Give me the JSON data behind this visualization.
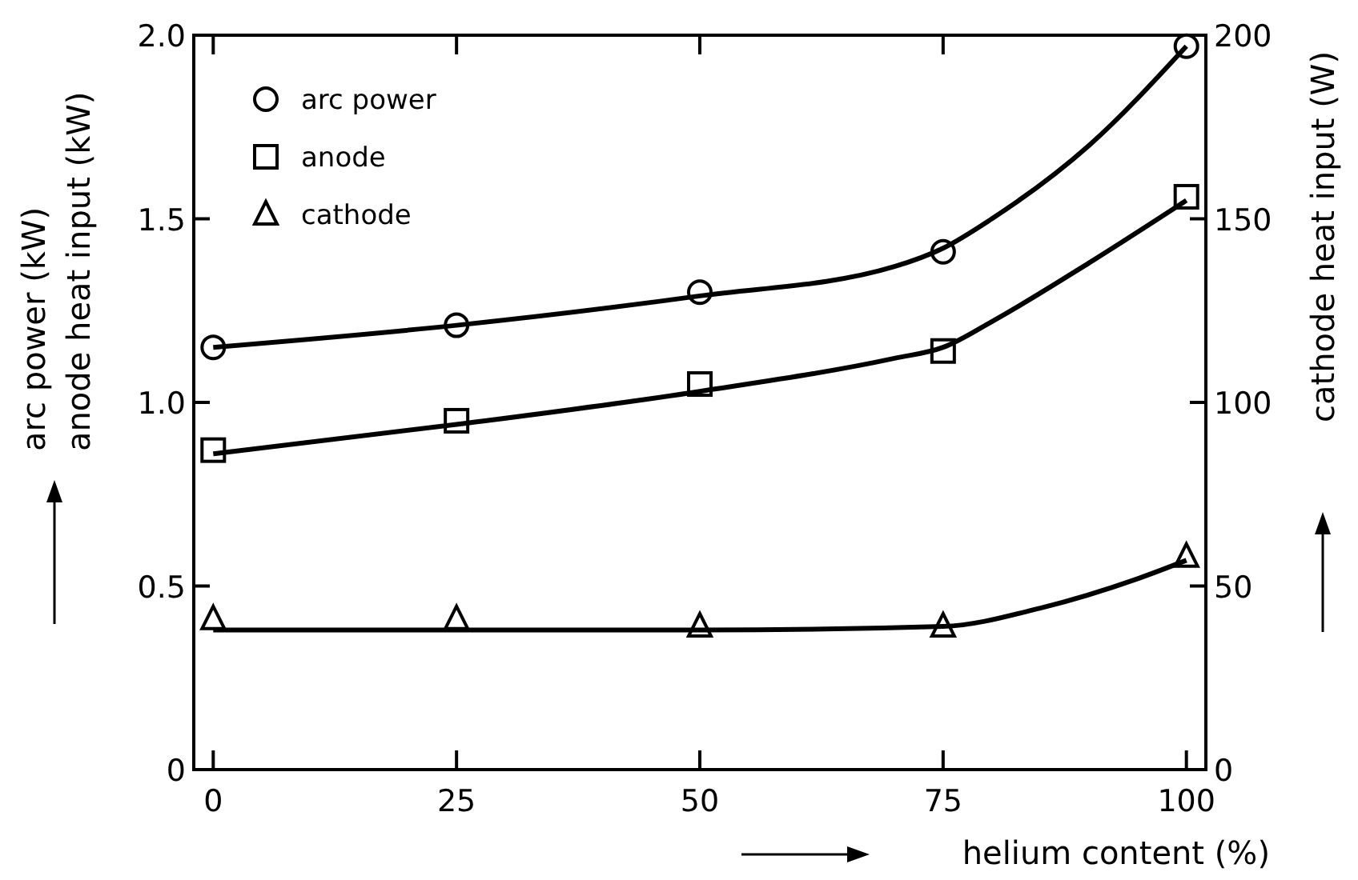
{
  "chart_data": {
    "type": "line",
    "xlabel": "helium content (%)",
    "ylabel": "arc power (kW)\nanode heat input (kW)",
    "y2label": "cathode heat input (W)",
    "xlim": [
      -2,
      102
    ],
    "xticks": [
      0,
      25,
      50,
      75,
      100
    ],
    "ylim": [
      0,
      2
    ],
    "yticks": [
      0,
      0.5,
      {
        "value": 1,
        "label": "1.0"
      },
      1.5,
      {
        "value": 2,
        "label": "2.0"
      }
    ],
    "y2lim": [
      0,
      200
    ],
    "y2ticks": [
      0,
      50,
      100,
      150,
      200
    ],
    "legend": "top left",
    "grid": false,
    "series": [
      {
        "type": "scatter",
        "name": "arc power",
        "color": "#000000",
        "marker": "circle",
        "x": [
          0,
          25,
          50,
          75,
          100
        ],
        "values": [
          1.15,
          1.21,
          1.3,
          1.41,
          1.97
        ]
      },
      {
        "type": "scatter",
        "name": "anode",
        "color": "#000000",
        "marker": "square",
        "x": [
          0,
          25,
          50,
          75,
          100
        ],
        "values": [
          0.87,
          0.95,
          1.05,
          1.14,
          1.56
        ]
      },
      {
        "type": "scatter",
        "name": "cathode",
        "color": "#000000",
        "marker": "triangle",
        "axis": "y2",
        "x": [
          0,
          25,
          50,
          75,
          100
        ],
        "values": [
          41,
          41,
          39,
          39,
          58
        ]
      },
      {
        "color": "#000000",
        "marker": "none",
        "x": [
          0,
          25,
          50,
          70,
          75,
          80,
          90,
          100
        ],
        "values": [
          1.15,
          1.21,
          1.29,
          1.37,
          1.42,
          1.5,
          1.7,
          1.97
        ]
      },
      {
        "color": "#000000",
        "marker": "none",
        "x": [
          0,
          25,
          50,
          70,
          75,
          80,
          90,
          100
        ],
        "values": [
          0.86,
          0.94,
          1.03,
          1.12,
          1.15,
          1.22,
          1.38,
          1.55
        ]
      },
      {
        "color": "#000000",
        "marker": "none",
        "axis": "y2",
        "x": [
          0,
          25,
          50,
          75,
          85,
          95,
          100
        ],
        "values": [
          38,
          38,
          38,
          39,
          44,
          52,
          57
        ]
      }
    ]
  }
}
